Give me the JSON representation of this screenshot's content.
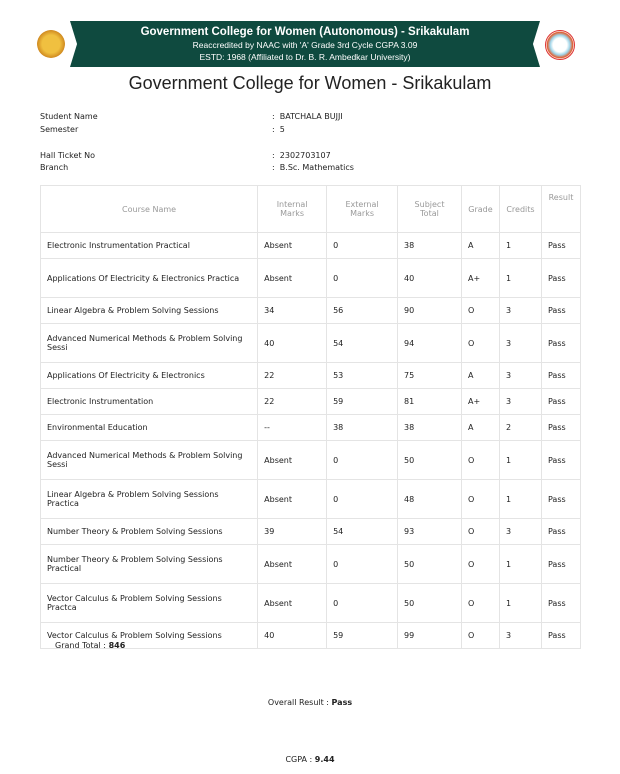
{
  "header": {
    "college": "Government College for Women (Autonomous) - Srikakulam",
    "accreditation": "Reaccredited by NAAC with 'A' Grade 3rd Cycle CGPA 3.09",
    "established": "ESTD: 1968 (Affiliated to Dr. B. R. Ambedkar University)",
    "title": "Government College for Women - Srikakulam"
  },
  "student": {
    "name_label": "Student Name",
    "name": "BATCHALA BUJJI",
    "semester_label": "Semester",
    "semester": "5",
    "hall_ticket_label": "Hall Ticket No",
    "hall_ticket": "2302703107",
    "branch_label": "Branch",
    "branch": "B.Sc. Mathematics",
    "separator": ":"
  },
  "table": {
    "headers": [
      "Course Name",
      "Internal Marks",
      "External Marks",
      "Subject Total",
      "Grade",
      "Credits",
      "Result"
    ],
    "rows": [
      [
        "Electronic Instrumentation Practical",
        "Absent",
        "0",
        "38",
        "A",
        "1",
        "Pass"
      ],
      [
        "Applications Of Electricity & Electronics Practica",
        "Absent",
        "0",
        "40",
        "A+",
        "1",
        "Pass"
      ],
      [
        "Linear Algebra & Problem Solving Sessions",
        "34",
        "56",
        "90",
        "O",
        "3",
        "Pass"
      ],
      [
        "Advanced Numerical Methods & Problem Solving Sessi",
        "40",
        "54",
        "94",
        "O",
        "3",
        "Pass"
      ],
      [
        "Applications Of Electricity & Electronics",
        "22",
        "53",
        "75",
        "A",
        "3",
        "Pass"
      ],
      [
        "Electronic Instrumentation",
        "22",
        "59",
        "81",
        "A+",
        "3",
        "Pass"
      ],
      [
        "Environmental Education",
        "--",
        "38",
        "38",
        "A",
        "2",
        "Pass"
      ],
      [
        "Advanced Numerical Methods & Problem Solving Sessi",
        "Absent",
        "0",
        "50",
        "O",
        "1",
        "Pass"
      ],
      [
        "Linear Algebra & Problem Solving Sessions Practica",
        "Absent",
        "0",
        "48",
        "O",
        "1",
        "Pass"
      ],
      [
        "Number Theory & Problem Solving Sessions",
        "39",
        "54",
        "93",
        "O",
        "3",
        "Pass"
      ],
      [
        "Number Theory & Problem Solving Sessions Practical",
        "Absent",
        "0",
        "50",
        "O",
        "1",
        "Pass"
      ],
      [
        "Vector Calculus & Problem Solving Sessions Practca",
        "Absent",
        "0",
        "50",
        "O",
        "1",
        "Pass"
      ],
      [
        "Vector Calculus & Problem Solving Sessions",
        "40",
        "59",
        "99",
        "O",
        "3",
        "Pass"
      ]
    ]
  },
  "summary": {
    "grand_total_label": "Grand Total :",
    "grand_total": "846",
    "overall_label": "Overall Result :",
    "overall": "Pass",
    "cgpa_label": "CGPA :",
    "cgpa": "9.44"
  }
}
